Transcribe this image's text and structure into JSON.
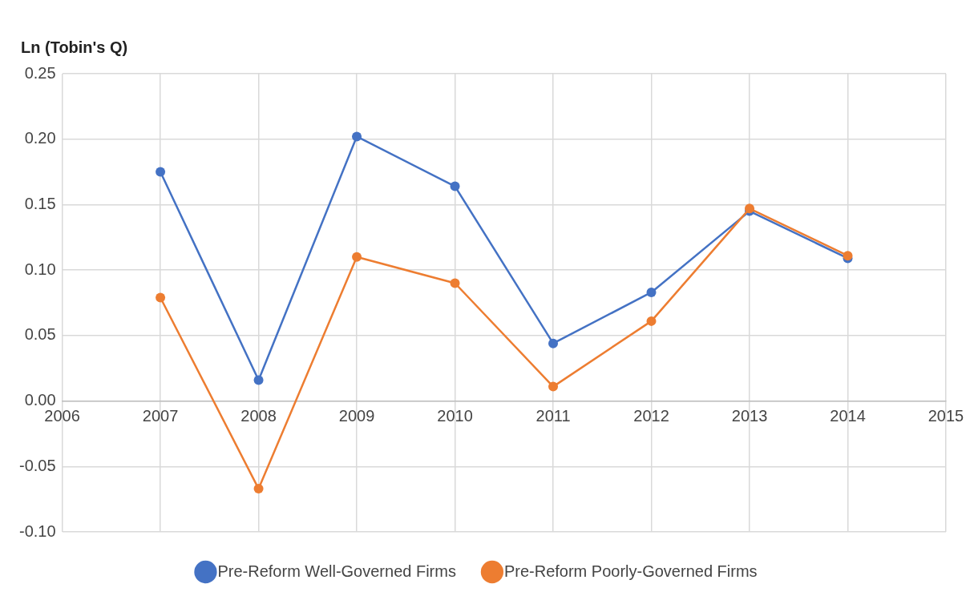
{
  "chart_data": {
    "type": "line",
    "ylabel": "Ln (Tobin's Q)",
    "x": [
      2007,
      2008,
      2009,
      2010,
      2011,
      2012,
      2013,
      2014
    ],
    "series": [
      {
        "name": "Pre-Reform Well-Governed Firms",
        "color": "#4472c4",
        "values": [
          0.175,
          0.016,
          0.202,
          0.164,
          0.044,
          0.083,
          0.145,
          0.109
        ]
      },
      {
        "name": "Pre-Reform Poorly-Governed Firms",
        "color": "#ed7d31",
        "values": [
          0.079,
          -0.067,
          0.11,
          0.09,
          0.011,
          0.061,
          0.147,
          0.111
        ]
      }
    ],
    "xlim": [
      2006,
      2015
    ],
    "xticks": [
      2006,
      2007,
      2008,
      2009,
      2010,
      2011,
      2012,
      2013,
      2014,
      2015
    ],
    "ylim": [
      -0.1,
      0.25
    ],
    "yticks": [
      {
        "value": -0.1,
        "label": "-0.10"
      },
      {
        "value": -0.05,
        "label": "-0.05"
      },
      {
        "value": 0,
        "label": "0.00"
      },
      {
        "value": 0.05,
        "label": "0.05"
      },
      {
        "value": 0.1,
        "label": "0.10"
      },
      {
        "value": 0.15,
        "label": "0.15"
      },
      {
        "value": 0.2,
        "label": "0.20"
      },
      {
        "value": 0.25,
        "label": "0.25"
      }
    ],
    "grid": true,
    "legend": "bottom",
    "marker": "circle",
    "line_style": "solid"
  }
}
